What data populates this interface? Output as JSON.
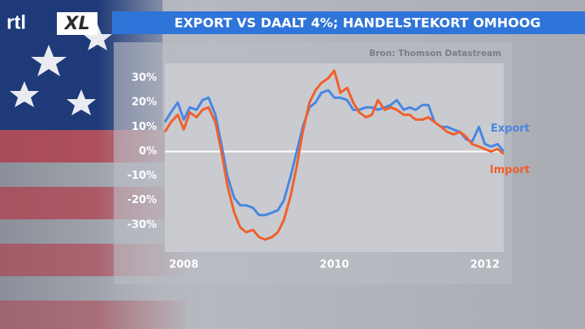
{
  "logo": {
    "part1": "rtl",
    "part2": "XL"
  },
  "chart_data": {
    "type": "line",
    "title": "EXPORT VS DAALT 4%; HANDELSTEKORT OMHOOG",
    "source": "Bron: Thomson Datastream",
    "x": [
      2007.75,
      2007.83,
      2007.92,
      2008,
      2008.08,
      2008.17,
      2008.25,
      2008.33,
      2008.42,
      2008.5,
      2008.58,
      2008.67,
      2008.75,
      2008.83,
      2008.92,
      2009,
      2009.08,
      2009.17,
      2009.25,
      2009.33,
      2009.42,
      2009.5,
      2009.58,
      2009.67,
      2009.75,
      2009.83,
      2009.92,
      2010,
      2010.08,
      2010.17,
      2010.25,
      2010.33,
      2010.42,
      2010.5,
      2010.58,
      2010.67,
      2010.75,
      2010.83,
      2010.92,
      2011,
      2011.08,
      2011.17,
      2011.25,
      2011.33,
      2011.42,
      2011.5,
      2011.58,
      2011.67,
      2011.75,
      2011.83,
      2011.92,
      2012,
      2012.08,
      2012.17,
      2012.25
    ],
    "series": [
      {
        "name": "Export",
        "color": "#4a86e0",
        "values": [
          12,
          16,
          20,
          13,
          18,
          17,
          21,
          22,
          15,
          3,
          -10,
          -19,
          -22,
          -22,
          -23,
          -26,
          -26,
          -25,
          -24,
          -20,
          -10,
          0,
          10,
          18,
          20,
          24,
          25,
          22,
          22,
          21,
          17,
          17,
          18,
          18,
          17,
          18,
          19,
          21,
          17,
          18,
          17,
          19,
          19,
          12,
          10,
          10,
          9,
          8,
          5,
          4,
          10,
          3,
          2,
          3,
          0
        ]
      },
      {
        "name": "Import",
        "color": "#f0602a",
        "values": [
          8,
          12,
          15,
          9,
          16,
          14,
          17,
          18,
          12,
          0,
          -14,
          -25,
          -31,
          -33,
          -32,
          -35,
          -36,
          -35,
          -33,
          -28,
          -18,
          -6,
          8,
          20,
          25,
          28,
          30,
          33,
          24,
          26,
          20,
          16,
          14,
          15,
          21,
          17,
          18,
          17,
          15,
          15,
          13,
          13,
          14,
          12,
          10,
          8,
          7,
          8,
          6,
          3,
          2,
          1,
          0,
          1,
          -1
        ]
      }
    ],
    "xlim": [
      2007.75,
      2012.25
    ],
    "xticks": [
      2008,
      2010,
      2012
    ],
    "ylim": [
      -41,
      36
    ],
    "yticks": [
      {
        "value": 30,
        "label": "30%"
      },
      {
        "value": 20,
        "label": "20%"
      },
      {
        "value": 10,
        "label": "10%"
      },
      {
        "value": 0,
        "label": "0%"
      },
      {
        "value": -10,
        "label": "-10%"
      },
      {
        "value": -20,
        "label": "-20%"
      },
      {
        "value": -30,
        "label": "-30%"
      }
    ]
  }
}
